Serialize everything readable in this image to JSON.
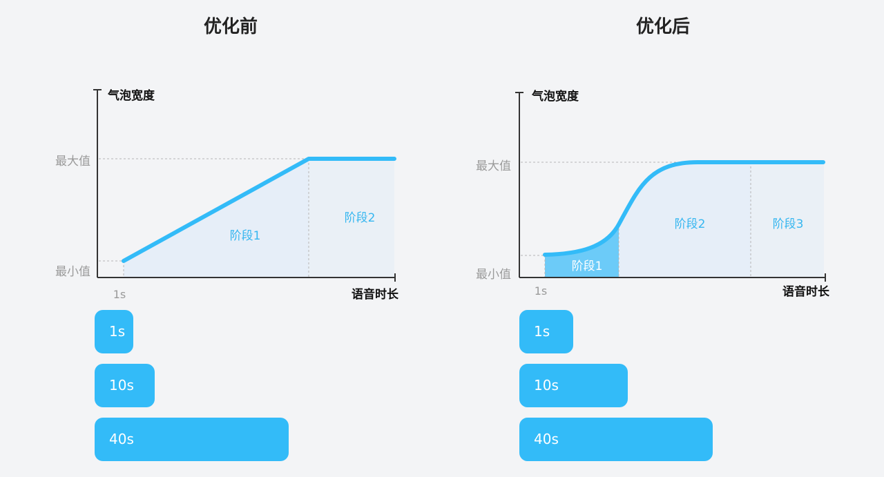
{
  "colors": {
    "accent": "#33bbf8",
    "accent_fill": "#e6eef8",
    "stage_highlight": "#6ccbf8",
    "axis": "#333333",
    "muted_text": "#9a9a9a",
    "stage_text": "#35b6f0",
    "background": "#f3f4f6"
  },
  "panels": [
    {
      "title": "优化前",
      "y_axis_label": "气泡宽度",
      "x_axis_label": "语音时长",
      "y_max_label": "最大值",
      "y_min_label": "最小值",
      "x_start_label": "1s",
      "stages": [
        "阶段1",
        "阶段2"
      ],
      "bubbles": [
        {
          "label": "1s",
          "relative_width": 0.2
        },
        {
          "label": "10s",
          "relative_width": 0.31
        },
        {
          "label": "40s",
          "relative_width": 1.0
        }
      ]
    },
    {
      "title": "优化后",
      "y_axis_label": "气泡宽度",
      "x_axis_label": "语音时长",
      "y_max_label": "最大值",
      "y_min_label": "最小值",
      "x_start_label": "1s",
      "stages": [
        "阶段1",
        "阶段2",
        "阶段3"
      ],
      "bubbles": [
        {
          "label": "1s",
          "relative_width": 0.28
        },
        {
          "label": "10s",
          "relative_width": 0.56
        },
        {
          "label": "40s",
          "relative_width": 1.0
        }
      ]
    }
  ]
}
